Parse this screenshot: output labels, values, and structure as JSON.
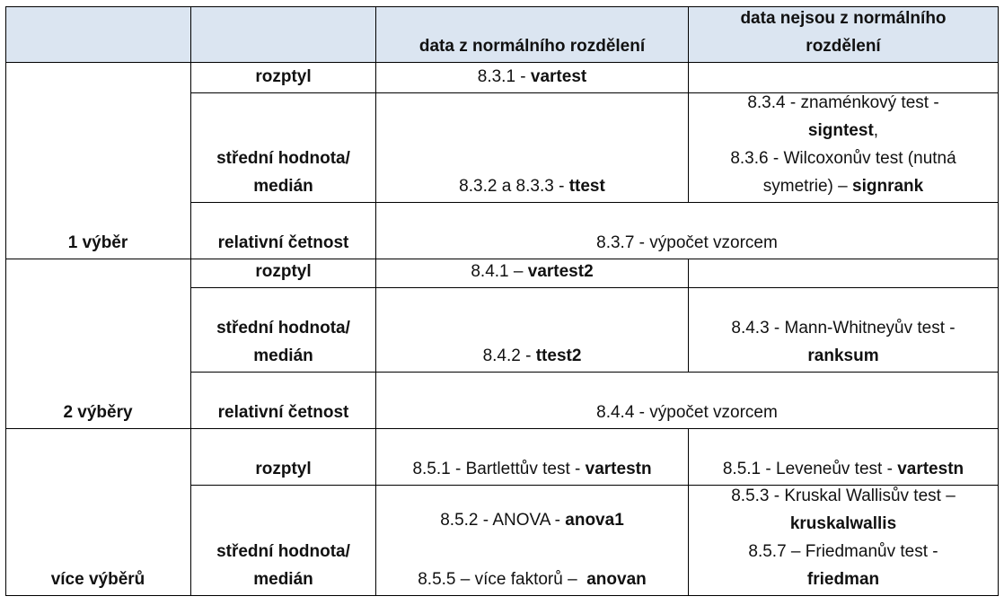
{
  "header": {
    "col_empty1": "",
    "col_empty2": "",
    "col_normal": "data z normálního rozdělení",
    "col_nonnormal_l1": "data nejsou z normálního",
    "col_nonnormal_l2": "rozdělení"
  },
  "groups": {
    "one": "1 výběr",
    "two": "2 výběry",
    "many": "více výběrů"
  },
  "rows": {
    "rozptyl": "rozptyl",
    "stredni_l1": "střední hodnota/",
    "stredni_l2": "medián",
    "relativni": "relativní četnost"
  },
  "one": {
    "rozptyl_normal_prefix": "8.3.1 - ",
    "rozptyl_normal_bold": "vartest",
    "stredni_normal_prefix": "8.3.2 a 8.3.3 - ",
    "stredni_normal_bold": "ttest",
    "stredni_non_l1": "8.3.4 - znaménkový test -",
    "stredni_non_l2_bold": "signtest",
    "stredni_non_l2_suffix": ",",
    "stredni_non_l3": "8.3.6 - Wilcoxonův test (nutná",
    "stredni_non_l4_prefix": "symetrie) – ",
    "stredni_non_l4_bold": "signrank",
    "relativni": "8.3.7 - výpočet vzorcem"
  },
  "two": {
    "rozptyl_normal_prefix": "8.4.1 – ",
    "rozptyl_normal_bold": "vartest2",
    "stredni_normal_prefix": "8.4.2 - ",
    "stredni_normal_bold": "ttest2",
    "stredni_non_l1": "8.4.3 - Mann-Whitneyův test -",
    "stredni_non_l2_bold": "ranksum",
    "relativni": "8.4.4 - výpočet vzorcem"
  },
  "many": {
    "rozptyl_normal_prefix": "8.5.1 - Bartlettův test - ",
    "rozptyl_normal_bold": "vartestn",
    "rozptyl_non_prefix": "8.5.1 - Leveneův test - ",
    "rozptyl_non_bold": "vartestn",
    "stredni_normal_l1_prefix": "8.5.2 - ANOVA - ",
    "stredni_normal_l1_bold": "anova1",
    "stredni_normal_l2_prefix": "8.5.5 – více faktorů –  ",
    "stredni_normal_l2_bold": "anovan",
    "stredni_non_l1": "8.5.3 - Kruskal Wallisův test –",
    "stredni_non_l2_bold": "kruskalwallis",
    "stredni_non_l3": "8.5.7 – Friedmanův test -",
    "stredni_non_l4_bold": "friedman"
  }
}
